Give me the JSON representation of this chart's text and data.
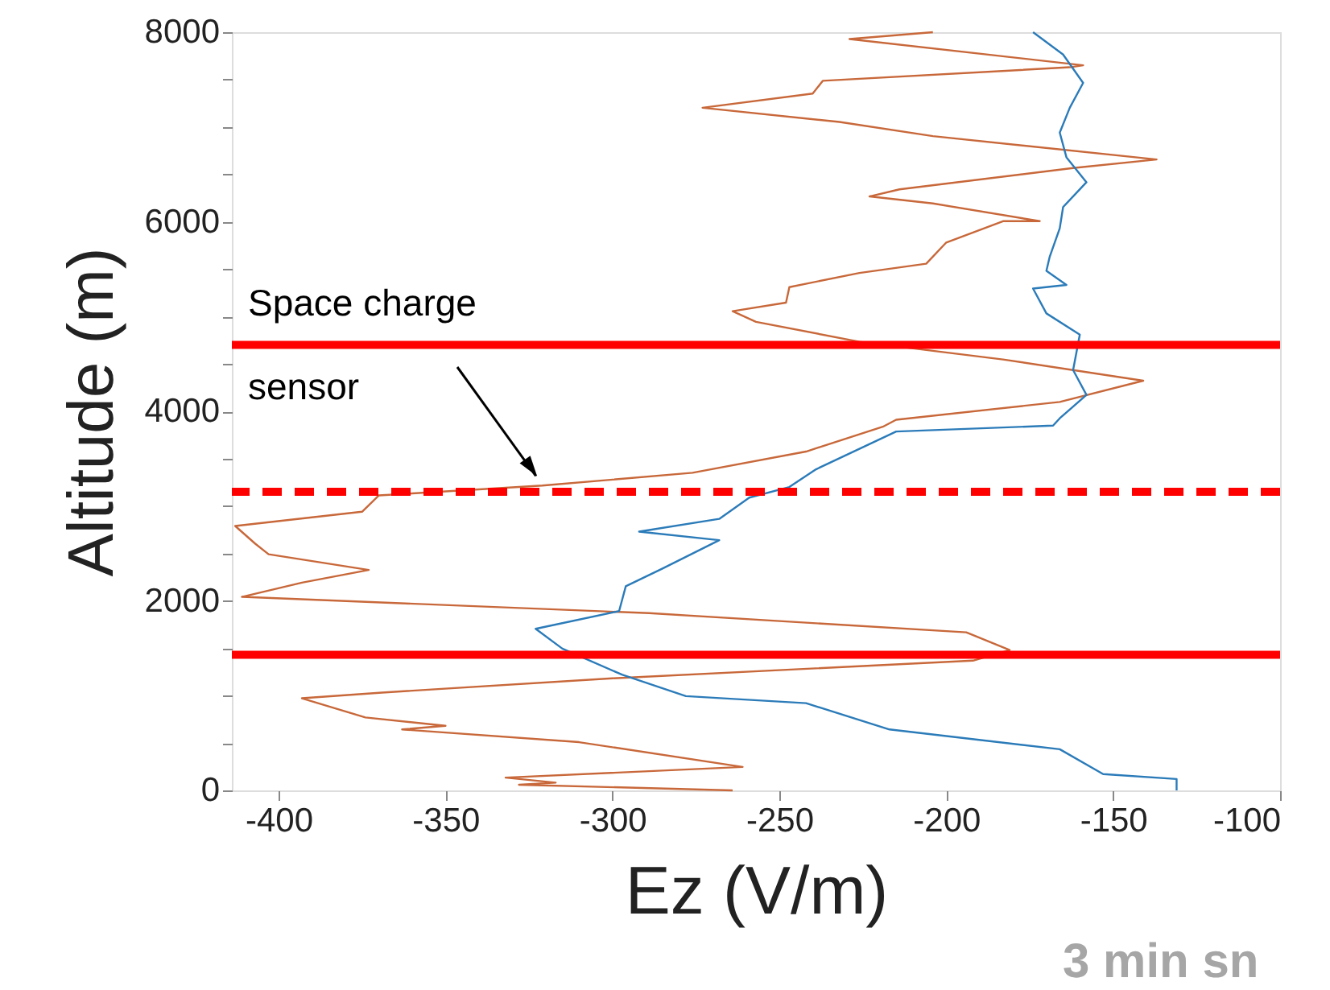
{
  "chart_data": {
    "type": "line",
    "xlabel": "Ez (V/m)",
    "ylabel": "Altitude (m)",
    "xlim": [
      -414,
      -100
    ],
    "xticks": [
      -400,
      -350,
      -300,
      -250,
      -200,
      -150,
      -100
    ],
    "ylim": [
      0,
      8000
    ],
    "yticks": [
      0,
      {
        "value": 500,
        "label": null
      },
      {
        "value": 1000,
        "label": null
      },
      {
        "value": 1500,
        "label": null
      },
      2000,
      {
        "value": 2500,
        "label": null
      },
      {
        "value": 3000,
        "label": null
      },
      {
        "value": 3500,
        "label": null
      },
      4000,
      {
        "value": 4500,
        "label": null
      },
      {
        "value": 5000,
        "label": null
      },
      {
        "value": 5500,
        "label": null
      },
      6000,
      {
        "value": 6500,
        "label": null
      },
      {
        "value": 7000,
        "label": null
      },
      {
        "value": 7500,
        "label": null
      },
      8000
    ],
    "grid": false,
    "legend": false,
    "marker": "none",
    "line_style": "solid",
    "series": [
      {
        "color": "#c8683a",
        "x": [
          -204,
          -229,
          -159,
          -163,
          -237,
          -240,
          -273,
          -232,
          -204,
          -137,
          -162,
          -214,
          -223,
          -204,
          -172,
          -183,
          -200,
          -206,
          -226,
          -247,
          -248,
          -264,
          -257,
          -226,
          -183,
          -141,
          -166,
          -215,
          -219,
          -242,
          -276,
          -321,
          -370,
          -375,
          -413,
          -407,
          -403,
          -373,
          -393,
          -411,
          -289,
          -194,
          -181,
          -192,
          -300,
          -369,
          -393,
          -374,
          -350,
          -363,
          -310,
          -261,
          -332,
          -317,
          -328,
          -264
        ],
        "values": [
          8000,
          7928,
          7651,
          7630,
          7487,
          7352,
          7203,
          7053,
          6903,
          6657,
          6567,
          6342,
          6267,
          6193,
          6006,
          6006,
          5781,
          5557,
          5460,
          5310,
          5146,
          5056,
          4944,
          4734,
          4547,
          4323,
          4099,
          3911,
          3837,
          3575,
          3351,
          3216,
          3112,
          2940,
          2790,
          2603,
          2491,
          2326,
          2192,
          2042,
          1870,
          1668,
          1481,
          1369,
          1182,
          1032,
          972,
          770,
          681,
          643,
          509,
          247,
          135,
          82,
          60,
          0
        ]
      },
      {
        "color": "#2b7bb9",
        "x": [
          -174,
          -165,
          -159,
          -163,
          -166,
          -164,
          -158,
          -165,
          -166,
          -169,
          -170,
          -164,
          -174,
          -170,
          -160,
          -162,
          -158,
          -166,
          -168,
          -215,
          -239,
          -247,
          -259,
          -268,
          -292,
          -268,
          -285,
          -296,
          -298,
          -323,
          -315,
          -297,
          -278,
          -242,
          -217,
          -166,
          -153,
          -131,
          -131
        ],
        "values": [
          8000,
          7764,
          7465,
          7203,
          6941,
          6680,
          6417,
          6155,
          5931,
          5632,
          5482,
          5333,
          5295,
          5033,
          4809,
          4435,
          4173,
          3926,
          3849,
          3787,
          3388,
          3201,
          3089,
          2865,
          2730,
          2640,
          2341,
          2154,
          1892,
          1705,
          1496,
          1219,
          995,
          920,
          643,
          434,
          172,
          120,
          0
        ]
      }
    ],
    "ref_lines": [
      {
        "axis": "y",
        "value": 4700,
        "color": "#ff0000",
        "line_style": "solid"
      },
      {
        "axis": "y",
        "value": 3150,
        "color": "#ff0000",
        "line_style": "dashed"
      },
      {
        "axis": "y",
        "value": 1430,
        "color": "#ff0000",
        "line_style": "solid"
      }
    ],
    "annotations": [
      {
        "text": "Space charge\nsensor",
        "x": -321,
        "y": 3216
      },
      "3 min sn"
    ]
  }
}
